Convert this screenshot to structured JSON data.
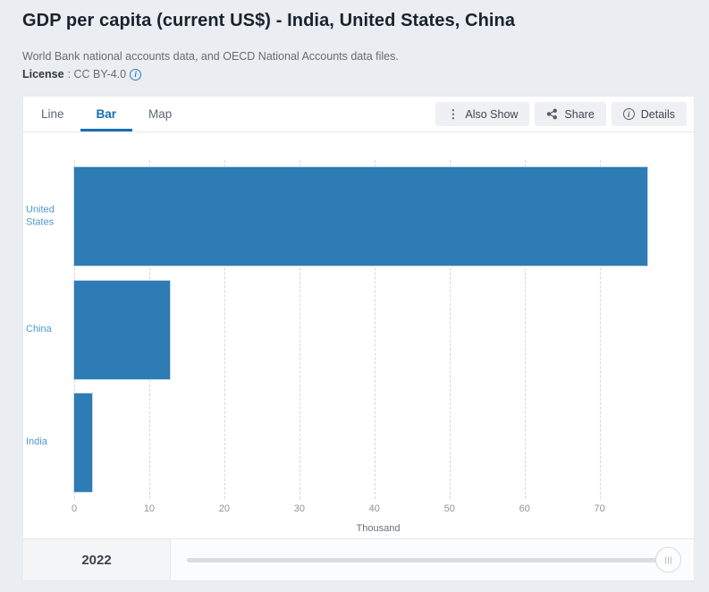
{
  "header": {
    "title": "GDP per capita (current US$) - India, United States, China",
    "subtitle": "World Bank national accounts data, and OECD National Accounts data files.",
    "license_label": "License",
    "license_value": ": CC BY-4.0"
  },
  "tabs": [
    {
      "label": "Line",
      "active": false
    },
    {
      "label": "Bar",
      "active": true
    },
    {
      "label": "Map",
      "active": false
    }
  ],
  "toolbar": {
    "also_show_label": "Also Show",
    "also_show_icon": "kebab-vertical-icon",
    "share_label": "Share",
    "share_icon": "share-icon",
    "details_label": "Details",
    "details_icon": "info-circle-icon"
  },
  "chart_data": {
    "type": "bar",
    "orientation": "horizontal",
    "title": "GDP per capita (current US$) - India, United States, China",
    "categories": [
      "United States",
      "China",
      "India"
    ],
    "values_thousand": [
      76.3,
      12.7,
      2.4
    ],
    "unit": "Thousand",
    "xlabel": "Thousand",
    "xticks": [
      0,
      10,
      20,
      30,
      40,
      50,
      60,
      70
    ],
    "xlim": [
      0,
      81
    ],
    "grid": "dashed-vertical",
    "legend": "none",
    "bar_color": "#2d7cb5",
    "category_label_color": "#4f97d2",
    "year_shown": "2022"
  },
  "footer": {
    "year": "2022",
    "slider_position_pct": 100
  },
  "colors": {
    "accent_blue": "#176db5",
    "bar_blue": "#2d7cb5",
    "page_bg": "#eaedf1",
    "card_bg": "#ffffff"
  }
}
